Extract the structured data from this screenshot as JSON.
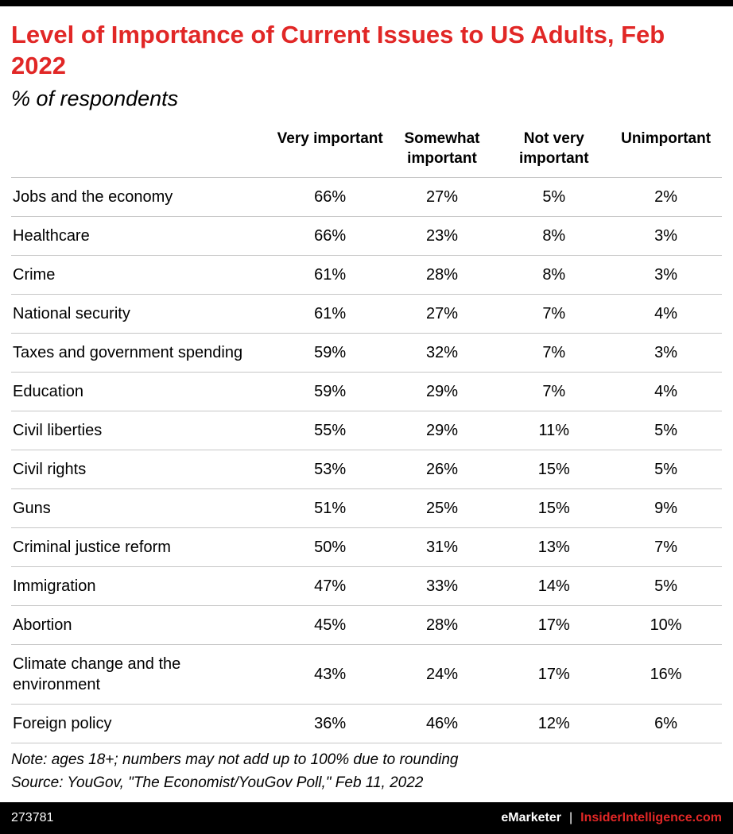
{
  "header": {
    "title": "Level of Importance of Current Issues to US Adults, Feb 2022",
    "subtitle": "% of respondents"
  },
  "table": {
    "columns": [
      "Very important",
      "Somewhat important",
      "Not very important",
      "Unimportant"
    ],
    "rows": [
      {
        "label": "Jobs and the economy",
        "values": [
          "66%",
          "27%",
          "5%",
          "2%"
        ]
      },
      {
        "label": "Healthcare",
        "values": [
          "66%",
          "23%",
          "8%",
          "3%"
        ]
      },
      {
        "label": "Crime",
        "values": [
          "61%",
          "28%",
          "8%",
          "3%"
        ]
      },
      {
        "label": "National security",
        "values": [
          "61%",
          "27%",
          "7%",
          "4%"
        ]
      },
      {
        "label": "Taxes and government spending",
        "values": [
          "59%",
          "32%",
          "7%",
          "3%"
        ]
      },
      {
        "label": "Education",
        "values": [
          "59%",
          "29%",
          "7%",
          "4%"
        ]
      },
      {
        "label": "Civil liberties",
        "values": [
          "55%",
          "29%",
          "11%",
          "5%"
        ]
      },
      {
        "label": "Civil rights",
        "values": [
          "53%",
          "26%",
          "15%",
          "5%"
        ]
      },
      {
        "label": "Guns",
        "values": [
          "51%",
          "25%",
          "15%",
          "9%"
        ]
      },
      {
        "label": "Criminal justice reform",
        "values": [
          "50%",
          "31%",
          "13%",
          "7%"
        ]
      },
      {
        "label": "Immigration",
        "values": [
          "47%",
          "33%",
          "14%",
          "5%"
        ]
      },
      {
        "label": "Abortion",
        "values": [
          "45%",
          "28%",
          "17%",
          "10%"
        ]
      },
      {
        "label": "Climate change and the environment",
        "values": [
          "43%",
          "24%",
          "17%",
          "16%"
        ]
      },
      {
        "label": "Foreign policy",
        "values": [
          "36%",
          "46%",
          "12%",
          "6%"
        ]
      }
    ]
  },
  "notes": {
    "note": "Note: ages 18+; numbers may not add up to 100% due to rounding",
    "source": "Source: YouGov, \"The Economist/YouGov Poll,\" Feb 11, 2022"
  },
  "footer": {
    "id": "273781",
    "brand": "eMarketer",
    "divider": "|",
    "site": "InsiderIntelligence.com"
  },
  "colors": {
    "accent_red": "#e12726",
    "bar_black": "#000000",
    "row_line_gray": "#c6c6c6"
  },
  "chart_data": {
    "type": "table",
    "title": "Level of Importance of Current Issues to US Adults, Feb 2022",
    "subtitle": "% of respondents",
    "unit": "% of respondents",
    "categories": [
      "Jobs and the economy",
      "Healthcare",
      "Crime",
      "National security",
      "Taxes and government spending",
      "Education",
      "Civil liberties",
      "Civil rights",
      "Guns",
      "Criminal justice reform",
      "Immigration",
      "Abortion",
      "Climate change and the environment",
      "Foreign policy"
    ],
    "series": [
      {
        "name": "Very important",
        "values": [
          66,
          66,
          61,
          61,
          59,
          59,
          55,
          53,
          51,
          50,
          47,
          45,
          43,
          36
        ]
      },
      {
        "name": "Somewhat important",
        "values": [
          27,
          23,
          28,
          27,
          32,
          29,
          29,
          26,
          25,
          31,
          33,
          28,
          24,
          46
        ]
      },
      {
        "name": "Not very important",
        "values": [
          5,
          8,
          8,
          7,
          7,
          7,
          11,
          15,
          15,
          13,
          14,
          17,
          17,
          12
        ]
      },
      {
        "name": "Unimportant",
        "values": [
          2,
          3,
          3,
          4,
          3,
          4,
          5,
          5,
          9,
          7,
          5,
          10,
          16,
          6
        ]
      }
    ],
    "note": "Note: ages 18+; numbers may not add up to 100% due to rounding",
    "source": "Source: YouGov, \"The Economist/YouGov Poll,\" Feb 11, 2022"
  }
}
